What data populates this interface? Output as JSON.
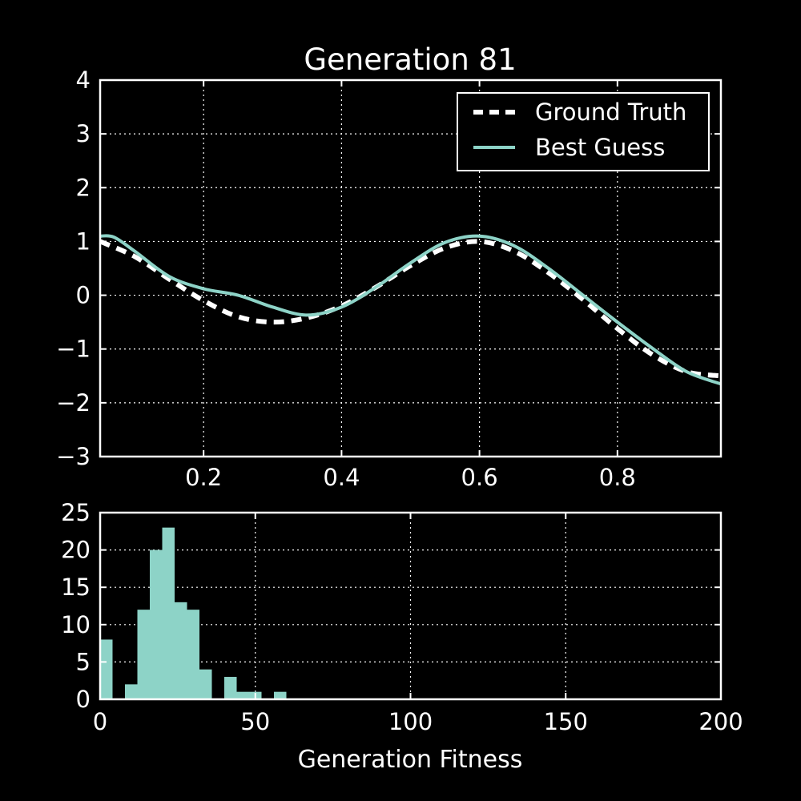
{
  "colors": {
    "background": "#000000",
    "foreground": "#ffffff",
    "accent": "#8dd3c7"
  },
  "chart_data": [
    {
      "type": "line",
      "title": "Generation 81",
      "xlabel": "",
      "ylabel": "",
      "xlim": [
        0.05,
        0.95
      ],
      "ylim": [
        -3,
        4
      ],
      "x_ticks": [
        0.2,
        0.4,
        0.6,
        0.8
      ],
      "x_tick_labels": [
        "0.2",
        "0.4",
        "0.6",
        "0.8"
      ],
      "y_ticks": [
        -3,
        -2,
        -1,
        0,
        1,
        2,
        3,
        4
      ],
      "y_tick_labels": [
        "−3",
        "−2",
        "−1",
        "0",
        "1",
        "2",
        "3",
        "4"
      ],
      "grid": true,
      "legend_position": "top-right",
      "series": [
        {
          "name": "Ground Truth",
          "style": "dashed",
          "color": "#ffffff",
          "x": [
            0.05,
            0.1,
            0.15,
            0.2,
            0.25,
            0.3,
            0.35,
            0.4,
            0.45,
            0.5,
            0.55,
            0.6,
            0.65,
            0.7,
            0.75,
            0.8,
            0.85,
            0.9,
            0.95
          ],
          "y": [
            1.0,
            0.72,
            0.3,
            -0.1,
            -0.4,
            -0.5,
            -0.42,
            -0.2,
            0.15,
            0.55,
            0.88,
            1.0,
            0.82,
            0.42,
            -0.08,
            -0.62,
            -1.1,
            -1.42,
            -1.5
          ]
        },
        {
          "name": "Best Guess",
          "style": "solid",
          "color": "#8dd3c7",
          "x": [
            0.05,
            0.07,
            0.1,
            0.15,
            0.2,
            0.25,
            0.3,
            0.35,
            0.4,
            0.45,
            0.5,
            0.55,
            0.6,
            0.65,
            0.7,
            0.75,
            0.8,
            0.85,
            0.9,
            0.95
          ],
          "y": [
            1.1,
            1.08,
            0.82,
            0.35,
            0.12,
            0.0,
            -0.22,
            -0.37,
            -0.22,
            0.15,
            0.6,
            0.98,
            1.1,
            0.92,
            0.5,
            0.0,
            -0.5,
            -0.98,
            -1.42,
            -1.65
          ]
        }
      ]
    },
    {
      "type": "bar",
      "title": "",
      "xlabel": "Generation Fitness",
      "ylabel": "",
      "xlim": [
        0,
        200
      ],
      "ylim": [
        0,
        25
      ],
      "x_ticks": [
        0,
        50,
        100,
        150,
        200
      ],
      "x_tick_labels": [
        "0",
        "50",
        "100",
        "150",
        "200"
      ],
      "y_ticks": [
        0,
        5,
        10,
        15,
        20,
        25
      ],
      "y_tick_labels": [
        "0",
        "5",
        "10",
        "15",
        "20",
        "25"
      ],
      "grid": true,
      "color": "#8dd3c7",
      "bin_width": 4,
      "bin_starts": [
        0,
        4,
        8,
        12,
        16,
        20,
        24,
        28,
        32,
        36,
        40,
        44,
        48,
        52,
        56,
        60
      ],
      "values": [
        8,
        0,
        2,
        12,
        20,
        23,
        13,
        12,
        4,
        0,
        3,
        1,
        1,
        0,
        1,
        0
      ]
    }
  ]
}
